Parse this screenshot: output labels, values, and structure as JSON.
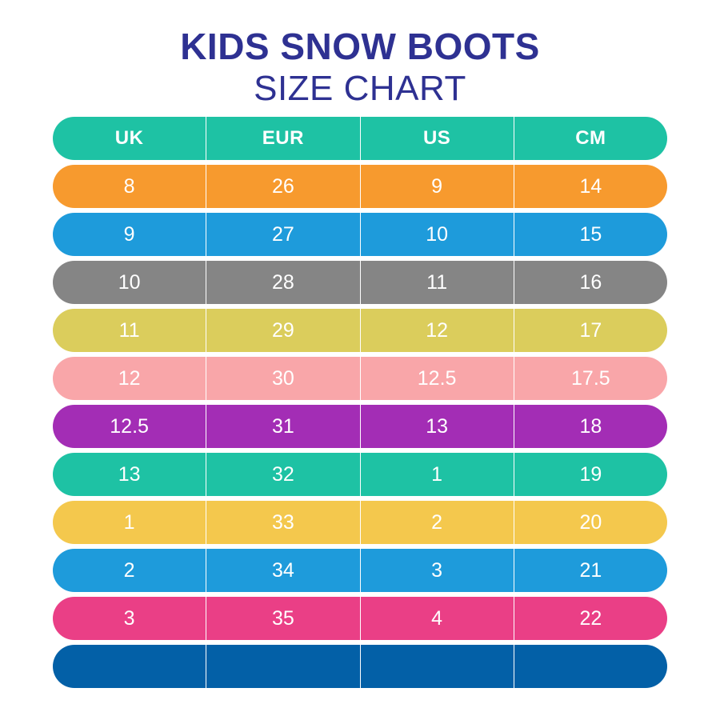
{
  "title": {
    "line1": "KIDS SNOW BOOTS",
    "line2": "SIZE CHART"
  },
  "colors": {
    "title": "#2e3192",
    "header": "#1ec2a4",
    "rows": [
      "#f79a2e",
      "#1e9bdb",
      "#858585",
      "#dbcd5c",
      "#f9a6a9",
      "#a32db5",
      "#1ec2a4",
      "#f4c84d",
      "#1e9bdb",
      "#ea3f86",
      "#0360a7"
    ]
  },
  "table": {
    "headers": [
      "UK",
      "EUR",
      "US",
      "CM"
    ],
    "rows": [
      [
        "8",
        "26",
        "9",
        "14"
      ],
      [
        "9",
        "27",
        "10",
        "15"
      ],
      [
        "10",
        "28",
        "11",
        "16"
      ],
      [
        "11",
        "29",
        "12",
        "17"
      ],
      [
        "12",
        "30",
        "12.5",
        "17.5"
      ],
      [
        "12.5",
        "31",
        "13",
        "18"
      ],
      [
        "13",
        "32",
        "1",
        "19"
      ],
      [
        "1",
        "33",
        "2",
        "20"
      ],
      [
        "2",
        "34",
        "3",
        "21"
      ],
      [
        "3",
        "35",
        "4",
        "22"
      ],
      [
        "",
        "",
        "",
        ""
      ]
    ]
  }
}
